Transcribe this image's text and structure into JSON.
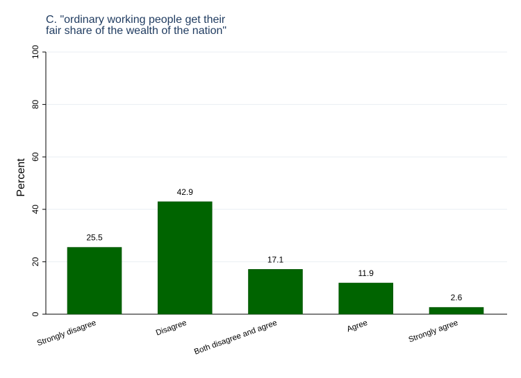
{
  "chart_data": {
    "type": "bar",
    "title_lines": [
      "C. \"ordinary working people get their",
      "fair share of the wealth of the nation\""
    ],
    "ylabel": "Percent",
    "xlabel": "",
    "categories": [
      "Strongly disagree",
      "Disagree",
      "Both disagree and agree",
      "Agree",
      "Strongly agree"
    ],
    "values": [
      25.5,
      42.9,
      17.1,
      11.9,
      2.6
    ],
    "value_labels": [
      "25.5",
      "42.9",
      "17.1",
      "11.9",
      "2.6"
    ],
    "ylim": [
      0,
      100
    ],
    "yticks": [
      0,
      20,
      40,
      60,
      80,
      100
    ],
    "grid": true,
    "bar_color": "#006400",
    "grid_color": "#e8eef3",
    "title_color": "#1e3a5f"
  }
}
